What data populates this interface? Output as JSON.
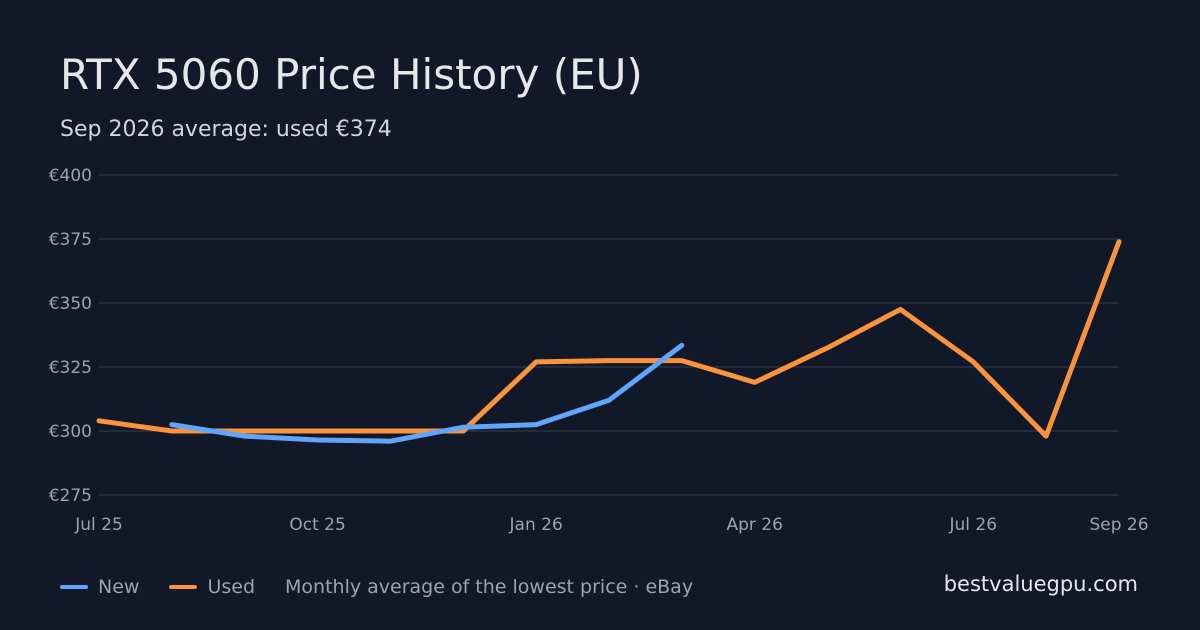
{
  "chart_data": {
    "type": "line",
    "title": "RTX 5060 Price History (EU)",
    "subtitle": "Sep 2026 average: used €374",
    "xlabel": "",
    "ylabel": "",
    "ylim": [
      275,
      400
    ],
    "yticks": [
      275,
      300,
      325,
      350,
      375,
      400
    ],
    "ytick_labels": [
      "€275",
      "€300",
      "€325",
      "€350",
      "€375",
      "€400"
    ],
    "xticks": [
      {
        "month": "2025-07",
        "label": "Jul 25"
      },
      {
        "month": "2025-10",
        "label": "Oct 25"
      },
      {
        "month": "2026-01",
        "label": "Jan 26"
      },
      {
        "month": "2026-04",
        "label": "Apr 26"
      },
      {
        "month": "2026-07",
        "label": "Jul 26"
      },
      {
        "month": "2026-09",
        "label": "Sep 26"
      }
    ],
    "grid": true,
    "legend_position": "bottom-left",
    "series": [
      {
        "name": "New",
        "color": "#60a5fa",
        "points": [
          {
            "month": "2025-08",
            "value": 302.5
          },
          {
            "month": "2025-09",
            "value": 298
          },
          {
            "month": "2025-10",
            "value": 296.5
          },
          {
            "month": "2025-11",
            "value": 296
          },
          {
            "month": "2025-12",
            "value": 301.5
          },
          {
            "month": "2026-01",
            "value": 302.5
          },
          {
            "month": "2026-02",
            "value": 312
          },
          {
            "month": "2026-03",
            "value": 333.5
          }
        ]
      },
      {
        "name": "Used",
        "color": "#fb923c",
        "points": [
          {
            "month": "2025-07",
            "value": 304
          },
          {
            "month": "2025-08",
            "value": 300
          },
          {
            "month": "2025-09",
            "value": 300
          },
          {
            "month": "2025-10",
            "value": 300
          },
          {
            "month": "2025-11",
            "value": 300
          },
          {
            "month": "2025-12",
            "value": 300
          },
          {
            "month": "2026-01",
            "value": 327
          },
          {
            "month": "2026-02",
            "value": 327.5
          },
          {
            "month": "2026-03",
            "value": 327.5
          },
          {
            "month": "2026-04",
            "value": 319
          },
          {
            "month": "2026-05",
            "value": 332.5
          },
          {
            "month": "2026-06",
            "value": 347.5
          },
          {
            "month": "2026-07",
            "value": 327
          },
          {
            "month": "2026-08",
            "value": 298
          },
          {
            "month": "2026-09",
            "value": 374
          }
        ]
      }
    ]
  },
  "footer": {
    "legend": [
      {
        "name": "New",
        "color": "#60a5fa"
      },
      {
        "name": "Used",
        "color": "#fb923c"
      }
    ],
    "note": "Monthly average of the lowest price · eBay",
    "site": "bestvaluegpu.com"
  }
}
